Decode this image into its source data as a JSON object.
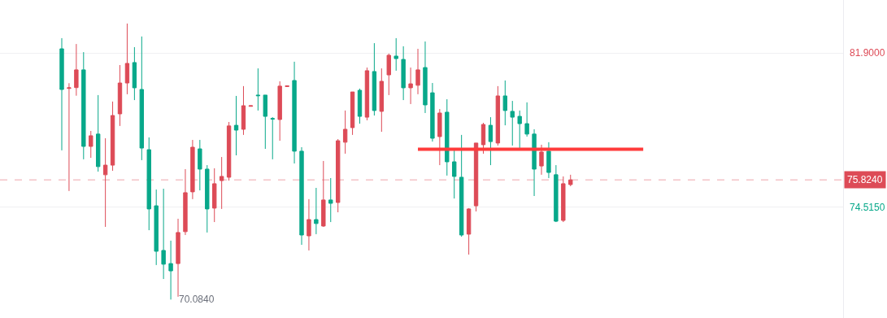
{
  "chart_data": {
    "type": "candlestick",
    "categories": [
      null,
      null,
      null,
      null,
      null,
      null,
      null,
      null,
      null,
      null,
      null,
      null,
      null,
      null,
      null,
      null,
      null,
      null,
      null,
      null,
      null,
      null,
      null,
      null,
      null,
      null,
      null,
      null,
      null,
      null,
      null,
      null,
      null,
      null,
      null,
      null,
      null,
      null,
      null,
      null,
      null,
      null,
      null,
      null,
      null,
      null,
      null,
      null,
      null,
      null,
      null,
      null,
      null,
      null,
      null,
      null,
      null,
      null,
      null,
      null,
      null,
      null,
      null,
      null,
      null,
      null,
      null,
      null,
      null,
      null,
      null,
      null,
      null,
      null,
      null,
      null,
      null,
      null,
      null,
      null,
      null,
      null,
      null,
      null,
      null,
      null,
      null,
      null,
      null,
      null,
      null,
      null,
      null,
      null,
      null,
      null,
      null,
      null,
      null,
      null,
      null,
      null,
      null,
      null,
      null,
      null,
      null,
      null,
      null,
      null,
      null,
      null,
      null,
      null,
      null,
      null
    ],
    "ohlc": [
      null,
      null,
      null,
      null,
      null,
      null,
      null,
      null,
      [
        82.11,
        82.62,
        77.24,
        80.16
      ],
      [
        80.21,
        80.46,
        75.29,
        80.24
      ],
      [
        80.25,
        82.34,
        79.86,
        81.1
      ],
      [
        81.1,
        81.95,
        76.81,
        77.43
      ],
      [
        77.43,
        78.17,
        76.88,
        77.94
      ],
      [
        78.02,
        79.89,
        76.22,
        76.46
      ],
      [
        76.07,
        77.82,
        73.57,
        76.53
      ],
      [
        76.53,
        79.58,
        76.26,
        78.91
      ],
      [
        78.99,
        81.33,
        78.41,
        80.47
      ],
      [
        80.47,
        83.32,
        79.93,
        81.41
      ],
      [
        81.45,
        82.19,
        79.65,
        80.24
      ],
      [
        80.16,
        82.7,
        76.77,
        77.35
      ],
      [
        77.27,
        77.86,
        73.41,
        74.43
      ],
      [
        74.58,
        75.36,
        71.74,
        72.4
      ],
      [
        72.44,
        75.4,
        71.07,
        71.78
      ],
      [
        71.81,
        72.91,
        70.084,
        71.46
      ],
      [
        71.81,
        73.96,
        70.22,
        73.3
      ],
      [
        73.34,
        76.34,
        73.18,
        75.21
      ],
      [
        75.25,
        77.74,
        74.9,
        77.39
      ],
      [
        77.31,
        77.74,
        75.32,
        76.34
      ],
      [
        76.34,
        76.53,
        73.3,
        74.43
      ],
      [
        74.47,
        76.38,
        73.8,
        75.64
      ],
      [
        75.79,
        76.92,
        74.43,
        75.99
      ],
      [
        75.95,
        78.6,
        75.79,
        78.41
      ],
      [
        78.44,
        79.85,
        77.0,
        78.21
      ],
      [
        78.25,
        80.32,
        77.98,
        79.38
      ],
      [
        79.35,
        79.38,
        79.35,
        79.38
      ],
      [
        79.89,
        81.17,
        79.15,
        79.86
      ],
      [
        79.89,
        79.89,
        77.31,
        78.87
      ],
      [
        78.77,
        78.83,
        76.81,
        78.74
      ],
      [
        78.72,
        80.55,
        77.7,
        80.32
      ],
      [
        80.3,
        80.33,
        80.3,
        80.33
      ],
      [
        80.59,
        81.49,
        76.61,
        77.2
      ],
      [
        77.2,
        77.39,
        72.71,
        73.18
      ],
      [
        73.14,
        74.9,
        72.44,
        73.92
      ],
      [
        73.92,
        75.44,
        73.22,
        73.73
      ],
      [
        73.61,
        76.73,
        73.57,
        74.86
      ],
      [
        74.86,
        75.91,
        73.8,
        74.7
      ],
      [
        74.74,
        77.78,
        74.27,
        77.7
      ],
      [
        77.63,
        79.15,
        77.08,
        78.25
      ],
      [
        78.33,
        80.04,
        77.98,
        80.04
      ],
      [
        80.12,
        80.2,
        78.52,
        78.87
      ],
      [
        78.83,
        81.21,
        78.68,
        81.06
      ],
      [
        81.02,
        82.38,
        78.91,
        79.15
      ],
      [
        79.11,
        81.17,
        78.13,
        80.55
      ],
      [
        80.86,
        81.88,
        79.89,
        81.8
      ],
      [
        81.76,
        82.62,
        81.06,
        81.64
      ],
      [
        81.6,
        82.23,
        79.65,
        80.24
      ],
      [
        80.24,
        81.21,
        79.46,
        80.43
      ],
      [
        80.36,
        82.11,
        79.93,
        81.1
      ],
      [
        81.21,
        82.46,
        79.03,
        79.42
      ],
      [
        80.0,
        80.47,
        77.66,
        77.82
      ],
      [
        77.9,
        79.22,
        76.53,
        79.03
      ],
      [
        79.07,
        79.69,
        76.03,
        76.69
      ],
      [
        76.69,
        77.24,
        74.93,
        75.99
      ],
      [
        75.95,
        77.98,
        73.1,
        73.18
      ],
      [
        73.22,
        74.47,
        72.24,
        74.43
      ],
      [
        74.58,
        77.59,
        74.31,
        77.59
      ],
      [
        77.51,
        78.56,
        77.08,
        78.48
      ],
      [
        78.44,
        78.83,
        76.53,
        77.66
      ],
      [
        77.59,
        80.32,
        77.47,
        79.85
      ],
      [
        79.85,
        80.59,
        78.44,
        79.15
      ],
      [
        79.11,
        79.61,
        77.47,
        78.83
      ],
      [
        78.87,
        79.15,
        77.35,
        78.52
      ],
      [
        78.52,
        79.54,
        77.9,
        78.02
      ],
      [
        78.02,
        78.25,
        75.05,
        76.34
      ],
      [
        76.49,
        77.51,
        76.07,
        77.16
      ],
      [
        77.2,
        77.63,
        75.91,
        76.18
      ],
      [
        76.07,
        76.53,
        73.8,
        73.84
      ],
      [
        73.88,
        75.99,
        73.8,
        75.64
      ],
      [
        75.6,
        76.07,
        75.52,
        75.824
      ],
      null,
      null,
      null,
      null,
      null,
      null,
      null,
      null,
      null,
      null,
      null,
      null,
      null,
      null,
      null,
      null,
      null,
      null,
      null,
      null,
      null,
      null,
      null,
      null,
      null,
      null,
      null,
      null,
      null,
      null,
      null,
      null,
      null,
      null,
      null,
      null,
      null
    ],
    "colors": [
      null,
      null,
      null,
      null,
      null,
      null,
      null,
      null,
      "#08a88a",
      "#dd4b57",
      "#dd4b57",
      "#08a88a",
      "#dd4b57",
      "#08a88a",
      "#dd4b57",
      "#dd4b57",
      "#dd4b57",
      "#dd4b57",
      "#08a88a",
      "#08a88a",
      "#08a88a",
      "#08a88a",
      "#08a88a",
      "#08a88a",
      "#dd4b57",
      "#dd4b57",
      "#dd4b57",
      "#08a88a",
      "#08a88a",
      "#dd4b57",
      "#dd4b57",
      "#dd4b57",
      "#08a88a",
      "#dd4b57",
      "#dd4b57",
      "#08a88a",
      "#08a88a",
      "#08a88a",
      "#dd4b57",
      "#dd4b57",
      "#08a88a",
      "#08a88a",
      "#dd4b57",
      "#08a88a",
      "#dd4b57",
      "#08a88a",
      "#dd4b57",
      "#dd4b57",
      "#dd4b57",
      "#08a88a",
      "#dd4b57",
      "#08a88a",
      "#dd4b57",
      "#dd4b57",
      "#08a88a",
      "#08a88a",
      "#dd4b57",
      "#dd4b57",
      "#08a88a",
      "#08a88a",
      "#dd4b57",
      "#08a88a",
      "#08a88a",
      "#08a88a",
      "#dd4b57",
      "#dd4b57",
      "#dd4b57",
      "#08a88a",
      "#dd4b57",
      "#08a88a",
      "#08a88a",
      "#08a88a",
      "#08a88a",
      "#08a88a",
      "#dd4b57",
      "#08a88a",
      "#08a88a",
      "#dd4b57",
      "#dd4b57",
      null,
      null,
      null,
      null,
      null,
      null,
      null,
      null,
      null,
      null,
      null,
      null,
      null,
      null,
      null,
      null,
      null,
      null,
      null,
      null,
      null,
      null,
      null,
      null,
      null,
      null,
      null,
      null,
      null,
      null,
      null,
      null,
      null,
      null,
      null,
      null,
      null
    ],
    "series": [
      {
        "type": "line",
        "color": "#ff3b3b",
        "values": [
          null,
          null,
          null,
          null,
          null,
          null,
          null,
          null,
          null,
          null,
          null,
          null,
          null,
          null,
          null,
          null,
          null,
          null,
          null,
          null,
          null,
          null,
          null,
          null,
          null,
          null,
          null,
          null,
          null,
          null,
          null,
          null,
          null,
          null,
          null,
          null,
          null,
          null,
          null,
          null,
          null,
          null,
          null,
          null,
          null,
          null,
          null,
          null,
          null,
          null,
          null,
          null,
          null,
          null,
          null,
          null,
          null,
          77.29,
          null,
          null,
          null,
          null,
          null,
          null,
          null,
          null,
          null,
          null,
          null,
          null,
          null,
          null,
          null,
          null,
          null,
          null,
          null,
          null,
          null,
          null,
          null,
          null,
          null,
          null,
          null,
          null,
          null,
          null,
          77.29,
          null,
          null,
          null,
          null,
          null,
          null,
          null,
          null,
          null,
          null,
          null,
          null,
          null,
          null,
          null,
          null,
          null,
          null,
          null,
          null,
          null,
          null,
          null,
          null,
          null,
          null,
          null
        ]
      }
    ],
    "ref_lines": [
      {
        "axis": "y",
        "value": 75.824,
        "label": "75.8240",
        "color": "#dd4b57",
        "line_style": "dashed"
      }
    ],
    "annotations": [
      "70.0840"
    ],
    "ylim": [
      69.2,
      84.45
    ],
    "yticks": [
      {
        "value": 81.9,
        "label": "81.9000"
      },
      {
        "value": 74.515,
        "label": "74.5150"
      }
    ],
    "grid": "y",
    "tick_labels": "y"
  }
}
